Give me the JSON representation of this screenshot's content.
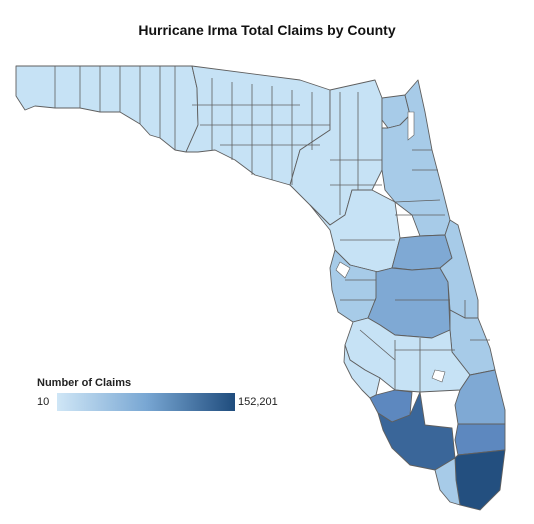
{
  "title": "Hurricane Irma Total Claims by County",
  "legend": {
    "title": "Number of Claims",
    "min_label": "10",
    "max_label": "152,201",
    "min": 10,
    "max": 152201
  },
  "colors": {
    "low": "#c6e2f5",
    "mid_low": "#a7cbe8",
    "mid": "#7fa9d4",
    "mid_high": "#5d88bf",
    "high": "#3a6699",
    "max": "#234f7f",
    "border": "#5f5f5f"
  },
  "region_levels": {
    "panhandle": "low",
    "big_bend": "low",
    "north_central": "low",
    "jacksonville": "mid_low",
    "northeast_coast": "mid_low",
    "gulf_central": "low",
    "tampa_bay": "mid_low",
    "orange": "mid",
    "polk": "mid",
    "brevard": "mid_low",
    "treasure_coast": "mid_low",
    "heartland": "low",
    "southwest_small": "low",
    "lee": "mid_high",
    "collier": "high",
    "palm_beach": "mid",
    "broward": "mid_high",
    "miami_dade": "max",
    "keys": "mid_low"
  }
}
